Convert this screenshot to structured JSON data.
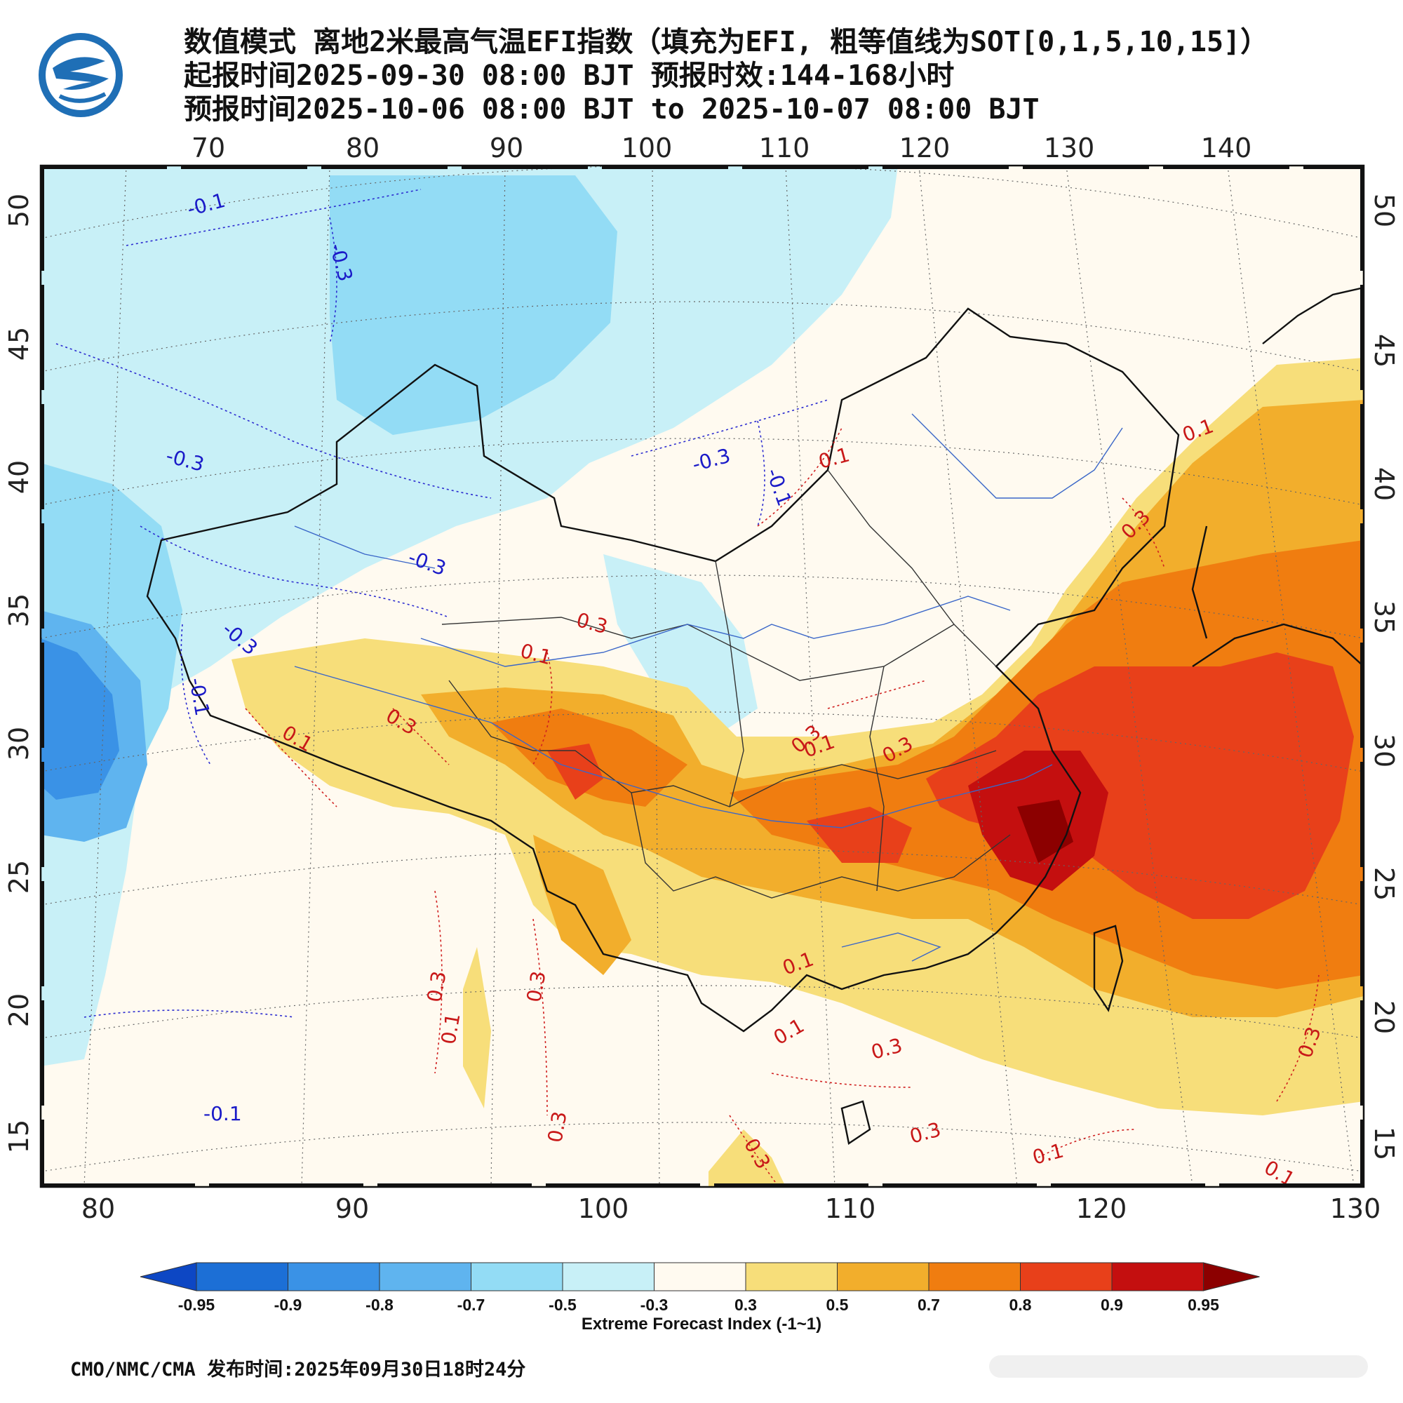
{
  "header": {
    "title": "数值模式 离地2米最高气温EFI指数（填充为EFI, 粗等值线为SOT[0,1,5,10,15]）",
    "init_time": "起报时间2025-09-30 08:00 BJT 预报时效:144-168小时",
    "valid_time": "预报时间2025-10-06 08:00 BJT to 2025-10-07 08:00 BJT"
  },
  "map": {
    "top_lon_labels": [
      "70",
      "80",
      "90",
      "100",
      "110",
      "120",
      "130",
      "140"
    ],
    "bottom_lon_labels": [
      "80",
      "90",
      "100",
      "110",
      "120",
      "130"
    ],
    "lat_labels": [
      "50",
      "45",
      "40",
      "35",
      "30",
      "25",
      "20",
      "15"
    ],
    "contour_labels": [
      "-0.1",
      "-0.3",
      "-0.3",
      "-0.3",
      "-0.3",
      "-0.1",
      "-0.3",
      "-0.1",
      "-0.1",
      "0.1",
      "0.1",
      "0.3",
      "0.1",
      "0.3",
      "0.3",
      "0.1",
      "0.3",
      "0.3",
      "0.1",
      "0.3",
      "0.3",
      "0.3",
      "0.1",
      "0.1",
      "0.3",
      "0.3",
      "0.3",
      "0.1",
      "0.3",
      "0.1",
      "0.1"
    ]
  },
  "colorbar": {
    "ticks": [
      "-0.95",
      "-0.9",
      "-0.8",
      "-0.7",
      "-0.5",
      "-0.3",
      "0.3",
      "0.5",
      "0.7",
      "0.8",
      "0.9",
      "0.95"
    ],
    "colors": [
      "#0d47c4",
      "#1c6fd6",
      "#3a92e6",
      "#5fb4ef",
      "#93dcf5",
      "#c8f0f7",
      "#fffaf0",
      "#f7de7a",
      "#f2ae2c",
      "#f07d10",
      "#e8401a",
      "#c40f0f",
      "#8c0000"
    ],
    "title": "Extreme Forecast Index (-1~1)"
  },
  "footer": {
    "text": "CMO/NMC/CMA 发布时间:2025年09月30日18时24分"
  }
}
